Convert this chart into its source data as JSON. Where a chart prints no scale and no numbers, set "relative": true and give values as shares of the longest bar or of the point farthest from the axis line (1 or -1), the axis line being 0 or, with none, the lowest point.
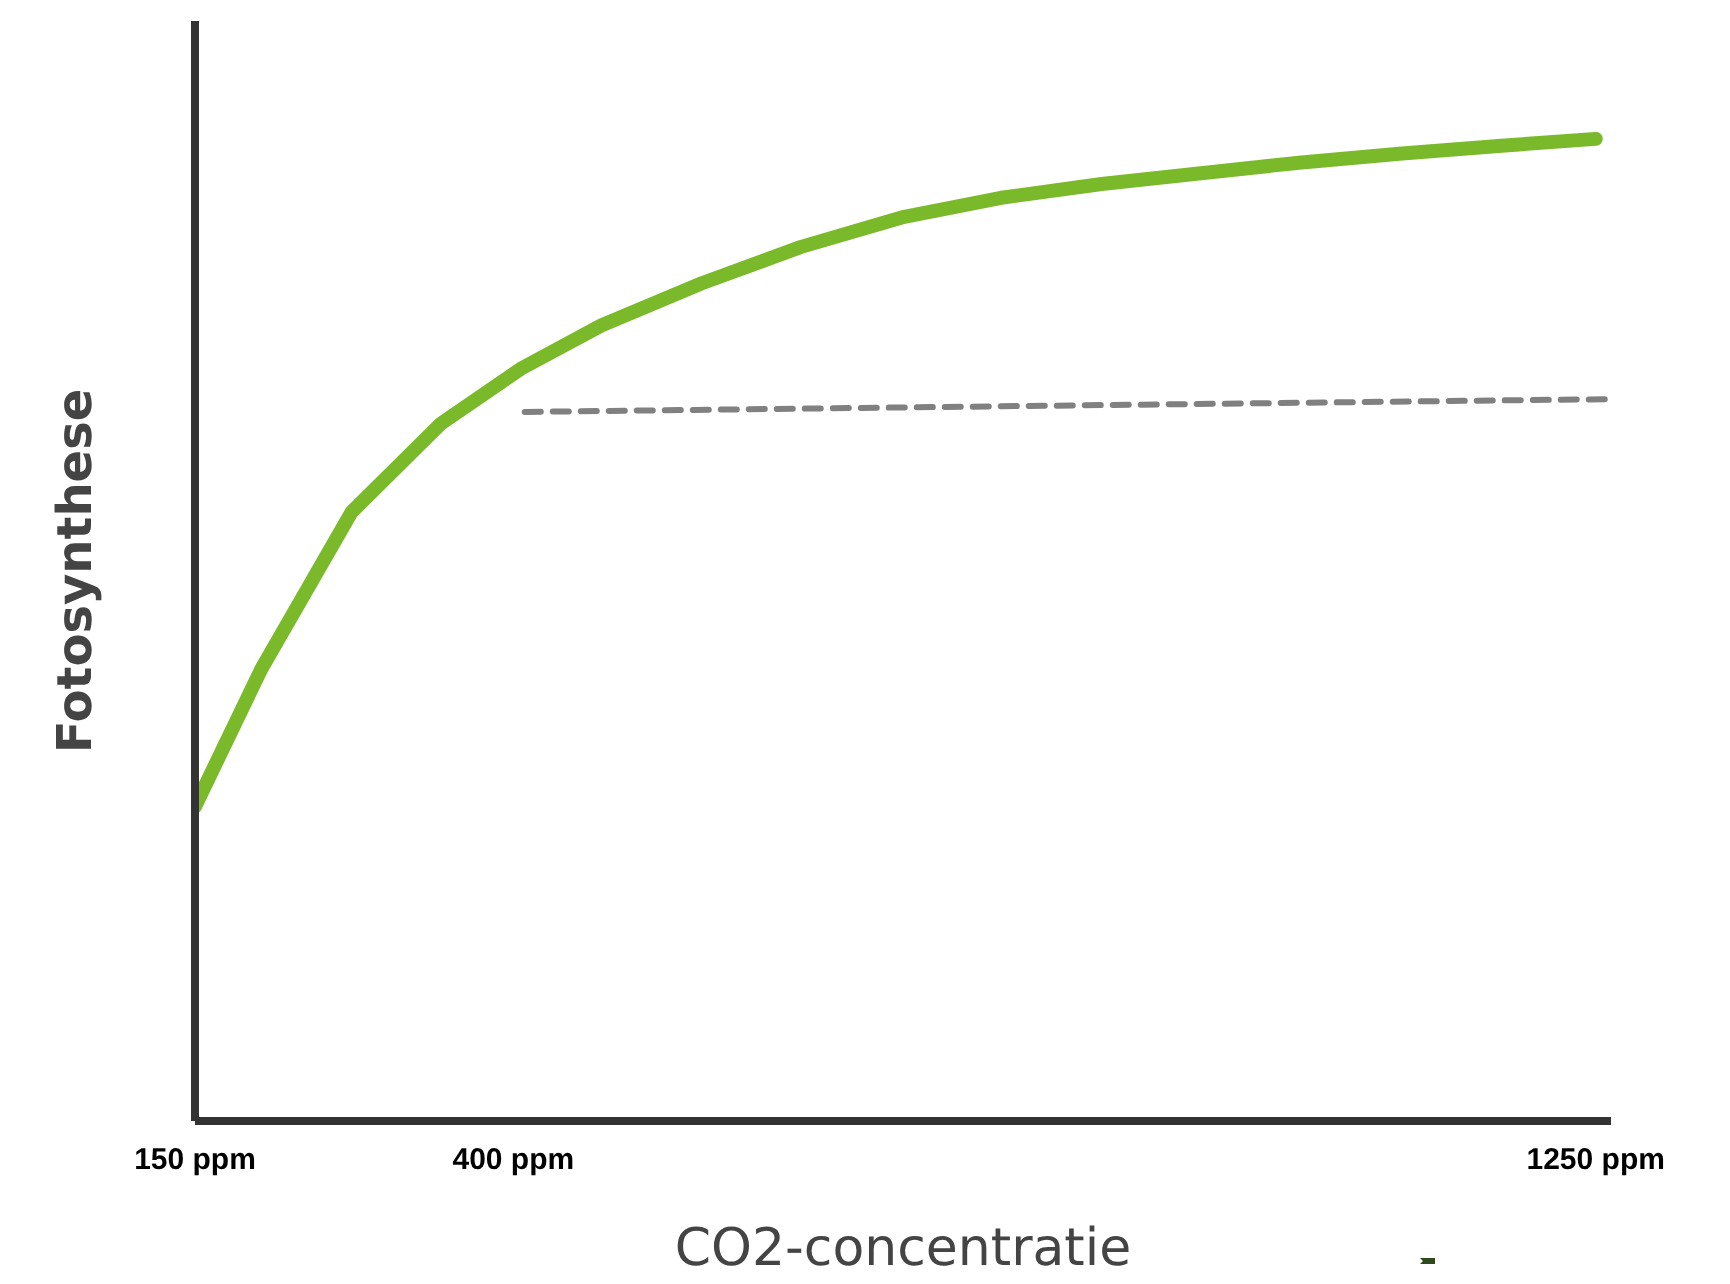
{
  "chart_data": {
    "type": "line",
    "relative": true,
    "xlabel": "CO2-concentratie",
    "ylabel": "Fotosynthese",
    "xlim": [
      150,
      1262
    ],
    "xticks": [
      {
        "value": 150,
        "label": "150 ppm"
      },
      {
        "value": 400,
        "label": "400 ppm"
      },
      {
        "value": 1250,
        "label": "1250 ppm"
      }
    ],
    "grid": false,
    "marker": "none",
    "series": [
      {
        "color": "#7ab929",
        "line_style": "solid",
        "x": [
          150,
          202,
          273,
          343,
          406,
          469,
          548,
          626,
          705,
          783,
          862,
          940,
          1019,
          1098,
          1176,
          1250
        ],
        "values": [
          0.32,
          0.46,
          0.62,
          0.71,
          0.766,
          0.81,
          0.853,
          0.89,
          0.92,
          0.94,
          0.954,
          0.965,
          0.976,
          0.985,
          0.993,
          1
        ]
      },
      {
        "color": "#808080",
        "line_style": "dashed",
        "x": [
          409,
          1262
        ],
        "values": [
          0.722,
          0.735
        ]
      }
    ]
  }
}
